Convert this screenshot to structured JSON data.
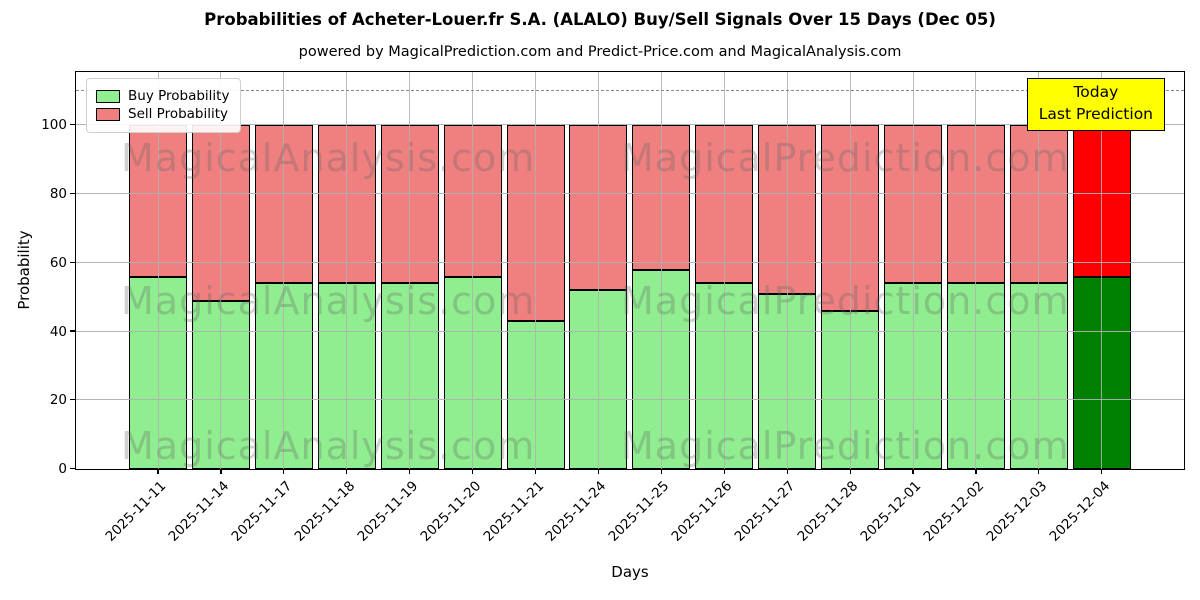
{
  "chart_data": {
    "type": "bar",
    "stacked": true,
    "title": "Probabilities of Acheter-Louer.fr S.A. (ALALO) Buy/Sell Signals Over 15 Days (Dec 05)",
    "subtitle": "powered by MagicalPrediction.com and Predict-Price.com and MagicalAnalysis.com",
    "xlabel": "Days",
    "ylabel": "Probability",
    "ylim": [
      0,
      115.5
    ],
    "yticks": [
      0,
      20,
      40,
      60,
      80,
      100
    ],
    "grid": true,
    "dashed_line_y": 110,
    "legend_position": "upper left",
    "categories": [
      "2025-11-11",
      "2025-11-14",
      "2025-11-17",
      "2025-11-18",
      "2025-11-19",
      "2025-11-20",
      "2025-11-21",
      "2025-11-24",
      "2025-11-25",
      "2025-11-26",
      "2025-11-27",
      "2025-11-28",
      "2025-12-01",
      "2025-12-02",
      "2025-12-03",
      "2025-12-04"
    ],
    "series": [
      {
        "name": "Buy Probability",
        "color": "#90EE90",
        "values": [
          56,
          49,
          54,
          54,
          54,
          56,
          43,
          52,
          58,
          54,
          51,
          46,
          54,
          54,
          54,
          56
        ]
      },
      {
        "name": "Sell Probability",
        "color": "#F08080",
        "values": [
          44,
          51,
          46,
          46,
          46,
          44,
          57,
          48,
          42,
          46,
          49,
          54,
          46,
          46,
          46,
          44
        ]
      }
    ],
    "today": {
      "index": 15,
      "buy_color": "#008000",
      "sell_color": "#FF0000",
      "line1": "Today",
      "line2": "Last Prediction"
    },
    "watermarks": [
      "MagicalAnalysis.com",
      "MagicalPrediction.com"
    ]
  }
}
